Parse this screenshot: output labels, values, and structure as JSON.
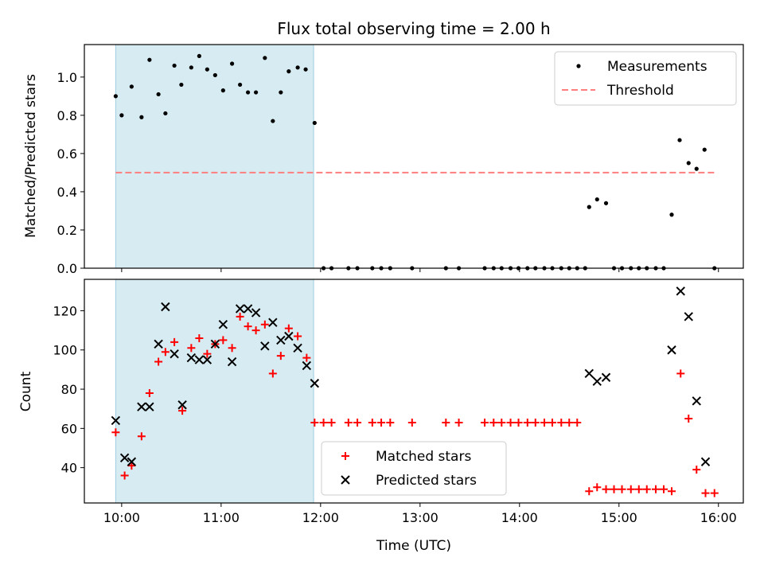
{
  "chart_data": [
    {
      "type": "scatter",
      "title": "Flux total observing time = 2.00 h",
      "xlabel": "",
      "ylabel": "Matched/Predicted stars",
      "xlim": [
        9.625,
        16.25
      ],
      "ylim": [
        0.0,
        1.17
      ],
      "yticks": [
        0.0,
        0.2,
        0.4,
        0.6,
        0.8,
        1.0
      ],
      "ytick_labels": [
        "0.0",
        "0.2",
        "0.4",
        "0.6",
        "0.8",
        "1.0"
      ],
      "shaded_region": [
        9.94,
        11.93
      ],
      "legend": [
        "Measurements",
        "Threshold"
      ],
      "threshold": {
        "name": "Threshold",
        "value": 0.5,
        "x": [
          9.94,
          15.96
        ],
        "color": "#ff7f7f"
      },
      "series": [
        {
          "name": "Measurements",
          "color": "#000000",
          "x": [
            9.94,
            10.0,
            10.1,
            10.2,
            10.28,
            10.37,
            10.44,
            10.53,
            10.6,
            10.7,
            10.78,
            10.86,
            10.94,
            11.02,
            11.11,
            11.19,
            11.27,
            11.35,
            11.44,
            11.52,
            11.6,
            11.68,
            11.77,
            11.85,
            11.94,
            12.03,
            12.11,
            12.28,
            12.37,
            12.52,
            12.61,
            12.7,
            12.92,
            13.26,
            13.39,
            13.65,
            13.74,
            13.82,
            13.91,
            13.99,
            14.08,
            14.16,
            14.25,
            14.33,
            14.42,
            14.5,
            14.58,
            14.66,
            14.7,
            14.78,
            14.87,
            14.95,
            15.03,
            15.12,
            15.2,
            15.28,
            15.37,
            15.45,
            15.53,
            15.61,
            15.7,
            15.78,
            15.86,
            15.96
          ],
          "y": [
            0.9,
            0.8,
            0.95,
            0.79,
            1.09,
            0.91,
            0.81,
            1.06,
            0.96,
            1.05,
            1.11,
            1.04,
            1.01,
            0.93,
            1.07,
            0.96,
            0.92,
            0.92,
            1.1,
            0.77,
            0.92,
            1.03,
            1.05,
            1.04,
            0.76,
            0.0,
            0.0,
            0.0,
            0.0,
            0.0,
            0.0,
            0.0,
            0.0,
            0.0,
            0.0,
            0.0,
            0.0,
            0.0,
            0.0,
            0.0,
            0.0,
            0.0,
            0.0,
            0.0,
            0.0,
            0.0,
            0.0,
            0.0,
            0.32,
            0.36,
            0.34,
            0.0,
            0.0,
            0.0,
            0.0,
            0.0,
            0.0,
            0.0,
            0.28,
            0.67,
            0.55,
            0.52,
            0.62,
            0.0
          ]
        }
      ]
    },
    {
      "type": "scatter",
      "title": "",
      "xlabel": "Time (UTC)",
      "ylabel": "Count",
      "xlim": [
        9.625,
        16.25
      ],
      "ylim": [
        22,
        136
      ],
      "xticks": [
        10,
        11,
        12,
        13,
        14,
        15,
        16
      ],
      "xtick_labels": [
        "10:00",
        "11:00",
        "12:00",
        "13:00",
        "14:00",
        "15:00",
        "16:00"
      ],
      "yticks": [
        40,
        60,
        80,
        100,
        120
      ],
      "ytick_labels": [
        "40",
        "60",
        "80",
        "100",
        "120"
      ],
      "shaded_region": [
        9.94,
        11.93
      ],
      "legend": [
        "Matched stars",
        "Predicted stars"
      ],
      "series": [
        {
          "name": "Matched stars",
          "marker": "+",
          "color": "#ff0000",
          "x": [
            9.94,
            10.03,
            10.1,
            10.2,
            10.28,
            10.37,
            10.44,
            10.53,
            10.61,
            10.7,
            10.78,
            10.86,
            10.94,
            11.02,
            11.11,
            11.19,
            11.27,
            11.35,
            11.44,
            11.52,
            11.6,
            11.68,
            11.77,
            11.86,
            11.94,
            12.03,
            12.11,
            12.28,
            12.37,
            12.52,
            12.61,
            12.7,
            12.92,
            13.26,
            13.39,
            13.65,
            13.74,
            13.82,
            13.91,
            13.99,
            14.08,
            14.16,
            14.25,
            14.33,
            14.42,
            14.5,
            14.58,
            14.7,
            14.78,
            14.87,
            14.95,
            15.03,
            15.12,
            15.2,
            15.28,
            15.37,
            15.45,
            15.53,
            15.62,
            15.7,
            15.78,
            15.87,
            15.96
          ],
          "y": [
            58,
            36,
            41,
            56,
            78,
            94,
            99,
            104,
            69,
            101,
            106,
            98,
            103,
            105,
            101,
            117,
            112,
            110,
            113,
            88,
            97,
            111,
            107,
            96,
            63,
            63,
            63,
            63,
            63,
            63,
            63,
            63,
            63,
            63,
            63,
            63,
            63,
            63,
            63,
            63,
            63,
            63,
            63,
            63,
            63,
            63,
            63,
            28,
            30,
            29,
            29,
            29,
            29,
            29,
            29,
            29,
            29,
            28,
            88,
            65,
            39,
            27,
            27
          ]
        },
        {
          "name": "Predicted stars",
          "marker": "x",
          "color": "#000000",
          "x": [
            9.94,
            10.03,
            10.1,
            10.2,
            10.28,
            10.37,
            10.44,
            10.53,
            10.61,
            10.7,
            10.78,
            10.86,
            10.94,
            11.02,
            11.11,
            11.19,
            11.27,
            11.35,
            11.44,
            11.52,
            11.6,
            11.68,
            11.77,
            11.86,
            11.94,
            14.7,
            14.78,
            14.87,
            15.53,
            15.62,
            15.7,
            15.78,
            15.87
          ],
          "y": [
            64,
            45,
            43,
            71,
            71,
            103,
            122,
            98,
            72,
            96,
            95,
            95,
            103,
            113,
            94,
            121,
            121,
            119,
            102,
            114,
            105,
            107,
            101,
            92,
            83,
            88,
            84,
            86,
            100,
            130,
            117,
            74,
            43
          ]
        }
      ]
    }
  ]
}
